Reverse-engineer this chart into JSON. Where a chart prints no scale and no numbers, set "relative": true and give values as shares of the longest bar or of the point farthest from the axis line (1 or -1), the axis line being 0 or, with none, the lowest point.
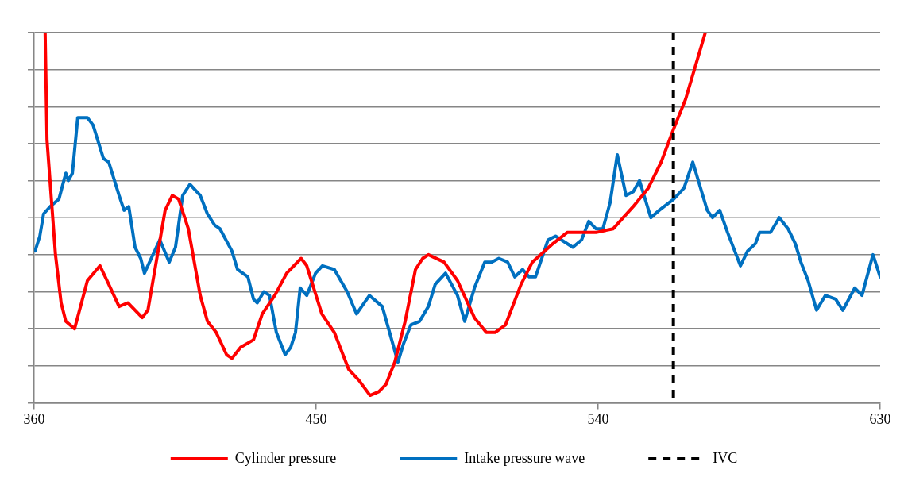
{
  "chart_data": {
    "type": "line",
    "relative": true,
    "xlim": [
      360,
      630
    ],
    "xticks": [
      360,
      450,
      540,
      630
    ],
    "grid": "y",
    "legend": "bottom",
    "marker": "none",
    "line_style": "solid",
    "series": [
      {
        "name": "Cylinder pressure",
        "color": "#ff0000",
        "x": [
          363.5,
          364.1,
          366.8,
          368.6,
          370.1,
          372.9,
          377.0,
          381.0,
          383.8,
          387.1,
          389.9,
          394.5,
          396.3,
          401.8,
          404.1,
          406.1,
          409.2,
          413.0,
          415.3,
          418.1,
          421.4,
          423.1,
          425.9,
          430.0,
          432.8,
          436.8,
          440.6,
          445.2,
          447.0,
          451.8,
          455.8,
          460.4,
          463.7,
          467.2,
          470.0,
          472.3,
          475.1,
          478.4,
          481.7,
          484.0,
          485.8,
          490.8,
          495.1,
          500.5,
          504.3,
          507.1,
          510.4,
          515.4,
          519.0,
          525.6,
          530.1,
          533.7,
          539.3,
          544.8,
          551.2,
          556.0,
          560.1,
          564.1,
          567.9,
          570.7,
          574.2
        ],
        "values": [
          1.0,
          0.71,
          0.4,
          0.27,
          0.22,
          0.2,
          0.33,
          0.37,
          0.32,
          0.26,
          0.27,
          0.23,
          0.25,
          0.52,
          0.56,
          0.55,
          0.47,
          0.29,
          0.22,
          0.19,
          0.13,
          0.12,
          0.15,
          0.17,
          0.24,
          0.29,
          0.35,
          0.39,
          0.37,
          0.24,
          0.19,
          0.09,
          0.06,
          0.02,
          0.03,
          0.05,
          0.11,
          0.22,
          0.36,
          0.39,
          0.4,
          0.38,
          0.33,
          0.23,
          0.19,
          0.19,
          0.21,
          0.32,
          0.38,
          0.43,
          0.46,
          0.46,
          0.46,
          0.47,
          0.53,
          0.58,
          0.65,
          0.74,
          0.82,
          0.9,
          1.0
        ]
      },
      {
        "name": "Intake pressure wave",
        "color": "#0070c0",
        "x": [
          360.3,
          361.8,
          363.0,
          365.1,
          367.9,
          370.1,
          370.9,
          372.2,
          373.9,
          377.0,
          378.8,
          382.1,
          383.8,
          387.1,
          388.7,
          390.2,
          392.2,
          394.0,
          395.2,
          400.1,
          403.1,
          405.1,
          407.4,
          409.7,
          413.0,
          415.3,
          417.6,
          419.3,
          423.1,
          424.9,
          428.2,
          430.0,
          431.2,
          433.3,
          435.1,
          437.3,
          440.1,
          441.9,
          443.4,
          444.9,
          447.0,
          449.8,
          452.0,
          455.8,
          459.9,
          462.9,
          467.0,
          471.1,
          476.1,
          477.9,
          480.2,
          483.0,
          485.8,
          488.0,
          491.3,
          495.1,
          497.4,
          500.5,
          503.8,
          506.0,
          508.3,
          511.1,
          513.4,
          515.9,
          518.0,
          520.0,
          524.0,
          526.4,
          531.9,
          534.7,
          537.0,
          539.3,
          541.5,
          543.8,
          546.1,
          548.9,
          551.2,
          553.2,
          556.8,
          559.5,
          564.1,
          567.4,
          570.2,
          574.8,
          576.5,
          578.8,
          581.3,
          585.4,
          587.7,
          590.2,
          591.5,
          593.3,
          595.0,
          597.8,
          600.6,
          602.9,
          604.7,
          607.0,
          609.7,
          612.5,
          615.8,
          618.1,
          621.9,
          624.2,
          627.7,
          630.0
        ],
        "values": [
          0.41,
          0.45,
          0.51,
          0.53,
          0.55,
          0.62,
          0.6,
          0.62,
          0.77,
          0.77,
          0.75,
          0.66,
          0.65,
          0.56,
          0.52,
          0.53,
          0.42,
          0.39,
          0.35,
          0.44,
          0.38,
          0.42,
          0.56,
          0.59,
          0.56,
          0.51,
          0.48,
          0.47,
          0.41,
          0.36,
          0.34,
          0.28,
          0.27,
          0.3,
          0.29,
          0.19,
          0.13,
          0.15,
          0.19,
          0.31,
          0.29,
          0.35,
          0.37,
          0.36,
          0.3,
          0.24,
          0.29,
          0.26,
          0.11,
          0.16,
          0.21,
          0.22,
          0.26,
          0.32,
          0.35,
          0.29,
          0.22,
          0.31,
          0.38,
          0.38,
          0.39,
          0.38,
          0.34,
          0.36,
          0.34,
          0.34,
          0.44,
          0.45,
          0.42,
          0.44,
          0.49,
          0.47,
          0.47,
          0.54,
          0.67,
          0.56,
          0.57,
          0.6,
          0.5,
          0.52,
          0.55,
          0.58,
          0.65,
          0.52,
          0.5,
          0.52,
          0.46,
          0.37,
          0.41,
          0.43,
          0.46,
          0.46,
          0.46,
          0.5,
          0.47,
          0.43,
          0.38,
          0.33,
          0.25,
          0.29,
          0.28,
          0.25,
          0.31,
          0.29,
          0.4,
          0.34
        ]
      }
    ],
    "ref_lines": [
      {
        "axis": "x",
        "value": 564,
        "label": "IVC",
        "color": "#000000",
        "line_style": "dashed"
      }
    ]
  }
}
